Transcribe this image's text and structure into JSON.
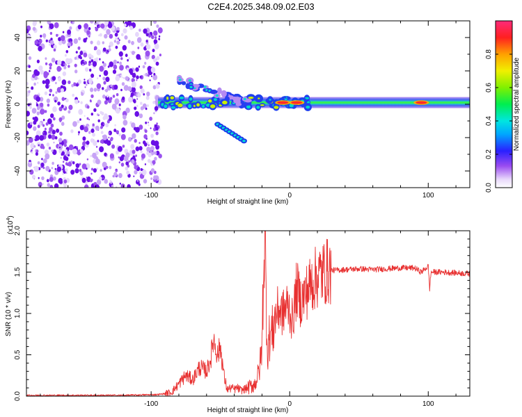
{
  "figure_title": "C2E4.2025.348.09.02.E03",
  "colors": {
    "snr_line": "#e83030",
    "frame": "#000000",
    "noise_purple": "#7a22e6",
    "background": "#ffffff"
  },
  "chart_data": [
    {
      "type": "heatmap",
      "title": "C2E4.2025.348.09.02.E03",
      "xlabel": "Height of straight line (km)",
      "ylabel": "Frequency (Hz)",
      "xlim": [
        -190,
        130
      ],
      "ylim": [
        -50,
        50
      ],
      "xticks": [
        -100,
        0,
        100
      ],
      "xtick_labels": [
        "-100",
        "0",
        "100"
      ],
      "yticks": [
        -40,
        -20,
        0,
        20,
        40
      ],
      "ytick_labels": [
        "-40",
        "-20",
        "0",
        "20",
        "40"
      ],
      "colorbar": {
        "label": "Normalized spectral amplitude",
        "range": [
          0,
          1
        ],
        "ticks": [
          0.0,
          0.2,
          0.4,
          0.6,
          0.8
        ],
        "tick_labels": [
          "0.0",
          "0.2",
          "0.4",
          "0.6",
          "0.8"
        ]
      },
      "features": [
        {
          "name": "noise region",
          "x_range": [
            -190,
            -95
          ],
          "freq_range": [
            -50,
            50
          ],
          "amplitude": 0.15
        },
        {
          "name": "main echo trace",
          "x_range": [
            -95,
            130
          ],
          "frequency": 1,
          "amplitude": 0.45
        },
        {
          "name": "upper branch",
          "x_range": [
            -80,
            -30
          ],
          "freq_range": [
            15,
            0
          ],
          "amplitude": 0.3
        },
        {
          "name": "lower branch",
          "x_range": [
            -52,
            -33
          ],
          "freq_range": [
            -12,
            -22
          ],
          "amplitude": 0.35
        },
        {
          "name": "peak",
          "x": -5,
          "frequency": 1,
          "amplitude": 0.9
        },
        {
          "name": "peak",
          "x": 5,
          "frequency": 1,
          "amplitude": 0.85
        },
        {
          "name": "peak",
          "x": 95,
          "frequency": 1,
          "amplitude": 0.95
        }
      ]
    },
    {
      "type": "line",
      "xlabel": "Height of straight line (km)",
      "ylabel": "SNR (10 * v/v)",
      "y_multiplier": "(x10",
      "y_multiplier_exp": "4",
      "y_multiplier_close": ")",
      "xlim": [
        -190,
        130
      ],
      "ylim": [
        0,
        2.0
      ],
      "xticks": [
        -100,
        0,
        100
      ],
      "xtick_labels": [
        "-100",
        "0",
        "100"
      ],
      "yticks": [
        0.0,
        0.5,
        1.0,
        1.5,
        2.0
      ],
      "ytick_labels": [
        "0.0",
        "0.5",
        "1.0",
        "1.5",
        "2.0"
      ],
      "series": [
        {
          "name": "SNR",
          "x": [
            -190,
            -120,
            -95,
            -90,
            -85,
            -80,
            -75,
            -70,
            -65,
            -60,
            -57,
            -55,
            -52,
            -50,
            -47,
            -45,
            -42,
            -40,
            -38,
            -35,
            -30,
            -25,
            -22,
            -20,
            -19,
            -18,
            -17,
            -16,
            -15,
            -12,
            -10,
            -8,
            -5,
            -2,
            0,
            2,
            5,
            8,
            10,
            15,
            20,
            25,
            30,
            40,
            50,
            60,
            70,
            80,
            90,
            95,
            100,
            101,
            102,
            105,
            110,
            120,
            130
          ],
          "y": [
            0.01,
            0.01,
            0.02,
            0.03,
            0.05,
            0.15,
            0.25,
            0.2,
            0.35,
            0.3,
            0.45,
            0.7,
            0.5,
            0.6,
            0.2,
            0.08,
            0.1,
            0.08,
            0.1,
            0.07,
            0.1,
            0.15,
            0.3,
            0.6,
            1.5,
            2.0,
            1.2,
            0.5,
            0.7,
            0.8,
            1.0,
            1.05,
            1.0,
            1.1,
            1.05,
            0.9,
            1.3,
            1.15,
            1.2,
            1.35,
            1.45,
            1.5,
            1.52,
            1.53,
            1.54,
            1.53,
            1.54,
            1.55,
            1.55,
            1.5,
            1.57,
            1.3,
            1.5,
            1.5,
            1.5,
            1.49,
            1.48
          ]
        }
      ]
    }
  ]
}
